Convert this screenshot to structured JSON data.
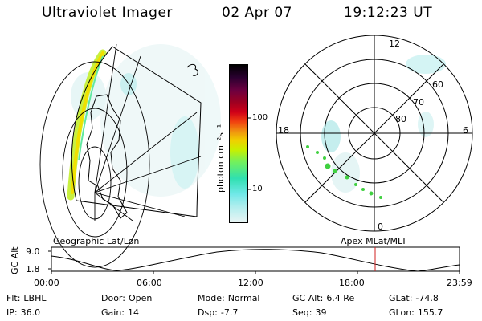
{
  "header": {
    "instrument": "Ultraviolet Imager",
    "date": "02 Apr 07",
    "time": "19:12:23 UT"
  },
  "left_panel": {
    "caption": "Geographic Lat/Lon"
  },
  "right_panel": {
    "caption": "Apex MLat/MLT",
    "mlt_labels": {
      "top": "12",
      "left": "18",
      "right": "6",
      "bottom": "0"
    },
    "lat_labels": [
      "60",
      "70",
      "80"
    ]
  },
  "colorbar": {
    "unit_label": "photon cm⁻²s⁻¹",
    "ticks": [
      "100",
      "10"
    ],
    "colors": [
      "#000000",
      "#2a0030",
      "#6b0040",
      "#a00020",
      "#d00018",
      "#f04010",
      "#f09010",
      "#f0d000",
      "#c8f000",
      "#70f060",
      "#30e0b0",
      "#70e8e8",
      "#b0eeee",
      "#e8f4f4"
    ]
  },
  "altitude_plot": {
    "ylabel": "GC Alt",
    "yticks": [
      "9.0",
      "1.8"
    ],
    "xticks": [
      "00:00",
      "06:00",
      "12:00",
      "18:00",
      "23:59"
    ],
    "marker_color": "#d02020"
  },
  "status": {
    "row1": [
      {
        "k": "Flt:",
        "v": "LBHL"
      },
      {
        "k": "Door:",
        "v": "Open"
      },
      {
        "k": "Mode:",
        "v": "Normal"
      },
      {
        "k": "GC Alt:",
        "v": "6.4 Re"
      },
      {
        "k": "GLat:",
        "v": "-74.8"
      }
    ],
    "row2": [
      {
        "k": "IP:",
        "v": "36.0"
      },
      {
        "k": "Gain:",
        "v": "14"
      },
      {
        "k": "Dsp:",
        "v": "-7.7"
      },
      {
        "k": "Seq:",
        "v": "39"
      },
      {
        "k": "GLon:",
        "v": "155.7"
      }
    ]
  }
}
